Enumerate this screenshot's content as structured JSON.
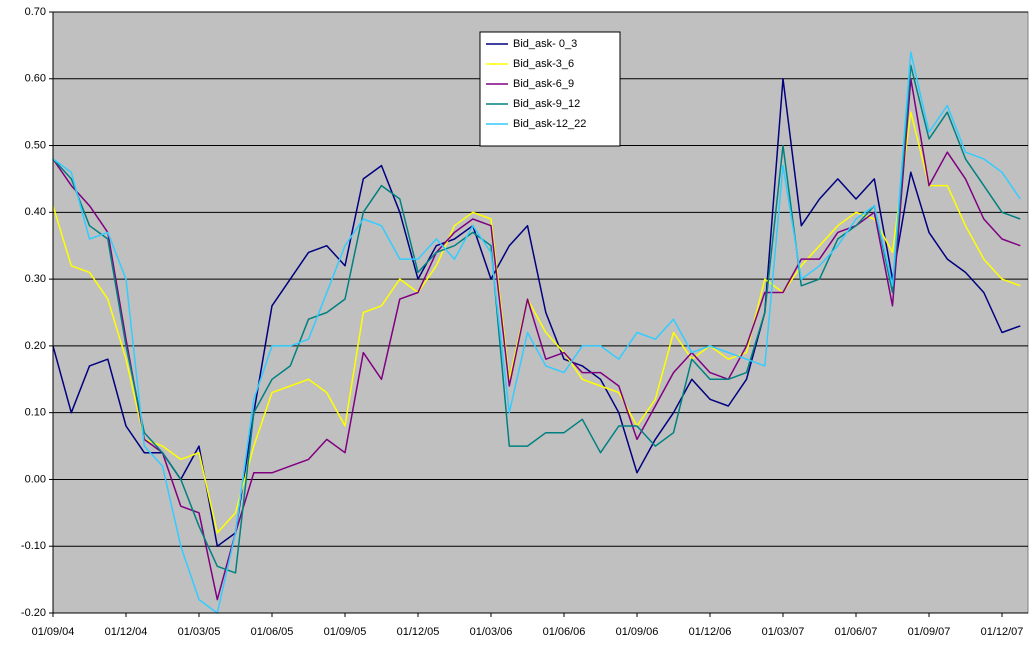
{
  "chart_data": {
    "type": "line",
    "categories": [
      "01/09/04",
      null,
      null,
      null,
      "01/12/04",
      null,
      null,
      null,
      "01/03/05",
      null,
      null,
      null,
      "01/06/05",
      null,
      null,
      null,
      "01/09/05",
      null,
      null,
      null,
      "01/12/05",
      null,
      null,
      null,
      "01/03/06",
      null,
      null,
      null,
      "01/06/06",
      null,
      null,
      null,
      "01/09/06",
      null,
      null,
      null,
      "01/12/06",
      null,
      null,
      null,
      "01/03/07",
      null,
      null,
      null,
      "01/06/07",
      null,
      null,
      null,
      "01/09/07",
      null,
      null,
      null,
      "01/12/07",
      null
    ],
    "series": [
      {
        "name": "Bid_ask- 0_3",
        "color": "#000080",
        "values": [
          0.2,
          0.1,
          0.17,
          0.18,
          0.08,
          0.04,
          0.04,
          0.0,
          0.05,
          -0.1,
          -0.08,
          0.1,
          0.26,
          0.3,
          0.34,
          0.35,
          0.32,
          0.45,
          0.47,
          0.4,
          0.3,
          0.35,
          0.36,
          0.38,
          0.3,
          0.35,
          0.38,
          0.25,
          0.18,
          0.17,
          0.15,
          0.1,
          0.01,
          0.06,
          0.1,
          0.15,
          0.12,
          0.11,
          0.15,
          0.25,
          0.6,
          0.38,
          0.42,
          0.45,
          0.42,
          0.45,
          0.3,
          0.46,
          0.37,
          0.33,
          0.31,
          0.28,
          0.22,
          0.23
        ]
      },
      {
        "name": "Bid_ask-3_6",
        "color": "#ffff00",
        "values": [
          0.41,
          0.32,
          0.31,
          0.27,
          0.18,
          0.06,
          0.05,
          0.03,
          0.04,
          -0.08,
          -0.05,
          0.05,
          0.13,
          0.14,
          0.15,
          0.13,
          0.08,
          0.25,
          0.26,
          0.3,
          0.28,
          0.32,
          0.38,
          0.4,
          0.39,
          0.15,
          0.27,
          0.22,
          0.19,
          0.15,
          0.14,
          0.13,
          0.08,
          0.12,
          0.22,
          0.18,
          0.2,
          0.18,
          0.19,
          0.3,
          0.28,
          0.32,
          0.35,
          0.38,
          0.4,
          0.39,
          0.34,
          0.55,
          0.44,
          0.44,
          0.38,
          0.33,
          0.3,
          0.29
        ]
      },
      {
        "name": "Bid_ask-6_9",
        "color": "#800080",
        "values": [
          0.48,
          0.44,
          0.41,
          0.37,
          0.21,
          0.06,
          0.04,
          -0.04,
          -0.05,
          -0.18,
          -0.08,
          0.01,
          0.01,
          0.02,
          0.03,
          0.06,
          0.04,
          0.19,
          0.15,
          0.27,
          0.28,
          0.34,
          0.37,
          0.39,
          0.38,
          0.14,
          0.27,
          0.18,
          0.19,
          0.16,
          0.16,
          0.14,
          0.06,
          0.11,
          0.16,
          0.19,
          0.16,
          0.15,
          0.2,
          0.28,
          0.28,
          0.33,
          0.33,
          0.37,
          0.38,
          0.4,
          0.26,
          0.6,
          0.44,
          0.49,
          0.45,
          0.39,
          0.36,
          0.35
        ]
      },
      {
        "name": "Bid_ask-9_12",
        "color": "#008080",
        "values": [
          0.48,
          0.45,
          0.38,
          0.36,
          0.2,
          0.07,
          0.04,
          0.0,
          -0.07,
          -0.13,
          -0.14,
          0.1,
          0.15,
          0.17,
          0.24,
          0.25,
          0.27,
          0.4,
          0.44,
          0.42,
          0.31,
          0.34,
          0.35,
          0.37,
          0.35,
          0.05,
          0.05,
          0.07,
          0.07,
          0.09,
          0.04,
          0.08,
          0.08,
          0.05,
          0.07,
          0.18,
          0.15,
          0.15,
          0.16,
          0.25,
          0.5,
          0.29,
          0.3,
          0.36,
          0.38,
          0.41,
          0.28,
          0.62,
          0.51,
          0.55,
          0.48,
          0.44,
          0.4,
          0.39
        ]
      },
      {
        "name": "Bid_ask-12_22",
        "color": "#33ccff",
        "values": [
          0.48,
          0.46,
          0.36,
          0.37,
          0.3,
          0.05,
          0.02,
          -0.1,
          -0.18,
          -0.2,
          -0.08,
          0.12,
          0.2,
          0.2,
          0.21,
          0.28,
          0.35,
          0.39,
          0.38,
          0.33,
          0.33,
          0.36,
          0.33,
          0.38,
          0.34,
          0.1,
          0.22,
          0.17,
          0.16,
          0.2,
          0.2,
          0.18,
          0.22,
          0.21,
          0.24,
          0.19,
          0.2,
          0.19,
          0.18,
          0.17,
          0.47,
          0.3,
          0.32,
          0.35,
          0.39,
          0.41,
          0.29,
          0.64,
          0.52,
          0.56,
          0.49,
          0.48,
          0.46,
          0.42
        ]
      }
    ],
    "ylim": [
      -0.2,
      0.7
    ],
    "yticks": [
      {
        "value": -0.2,
        "label": "-0.20"
      },
      {
        "value": -0.1,
        "label": "-0.10"
      },
      {
        "value": 0,
        "label": "0.00"
      },
      {
        "value": 0.1,
        "label": "0.10"
      },
      {
        "value": 0.2,
        "label": "0.20"
      },
      {
        "value": 0.3,
        "label": "0.30"
      },
      {
        "value": 0.4,
        "label": "0.40"
      },
      {
        "value": 0.5,
        "label": "0.50"
      },
      {
        "value": 0.6,
        "label": "0.60"
      },
      {
        "value": 0.7,
        "label": "0.70"
      }
    ],
    "grid": true,
    "legend": "top"
  }
}
